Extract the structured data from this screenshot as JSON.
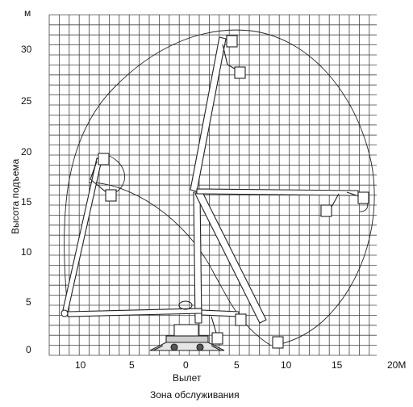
{
  "diagram": {
    "y_unit": "м",
    "y_axis_label": "Высота подъема",
    "x_axis_label": "Вылет",
    "x_end_label": "20М",
    "caption": "Зона обслуживания",
    "y_ticks": [
      "0",
      "5",
      "10",
      "15",
      "20",
      "25",
      "30"
    ],
    "x_ticks": [
      "10",
      "5",
      "0",
      "5",
      "10",
      "15"
    ],
    "grid": true
  }
}
